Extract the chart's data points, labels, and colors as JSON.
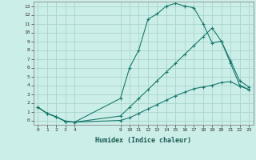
{
  "xlabel": "Humidex (Indice chaleur)",
  "bg_color": "#cceee8",
  "grid_color": "#aad4ce",
  "line_color": "#1a7a6e",
  "xlim": [
    -0.5,
    23.5
  ],
  "ylim": [
    -0.5,
    13.5
  ],
  "xticks": [
    0,
    1,
    2,
    3,
    4,
    9,
    10,
    11,
    12,
    13,
    14,
    15,
    16,
    17,
    18,
    19,
    20,
    21,
    22,
    23
  ],
  "yticks": [
    0,
    1,
    2,
    3,
    4,
    5,
    6,
    7,
    8,
    9,
    10,
    11,
    12,
    13
  ],
  "line1_x": [
    0,
    1,
    2,
    3,
    4,
    9,
    10,
    11,
    12,
    13,
    14,
    15,
    16,
    17,
    18,
    19,
    20,
    21,
    22,
    23
  ],
  "line1_y": [
    1.5,
    0.8,
    0.4,
    -0.1,
    -0.2,
    2.5,
    6.0,
    8.0,
    11.5,
    12.1,
    13.0,
    13.3,
    13.0,
    12.8,
    11.0,
    8.8,
    9.0,
    6.5,
    4.0,
    3.5
  ],
  "line2_x": [
    0,
    1,
    2,
    3,
    4,
    9,
    10,
    11,
    12,
    13,
    14,
    15,
    16,
    17,
    18,
    19,
    20,
    21,
    22,
    23
  ],
  "line2_y": [
    1.5,
    0.8,
    0.4,
    -0.1,
    -0.2,
    0.5,
    1.5,
    2.5,
    3.5,
    4.5,
    5.5,
    6.5,
    7.5,
    8.5,
    9.5,
    10.5,
    9.0,
    6.8,
    4.5,
    3.8
  ],
  "line3_x": [
    0,
    1,
    2,
    3,
    4,
    9,
    10,
    11,
    12,
    13,
    14,
    15,
    16,
    17,
    18,
    19,
    20,
    21,
    22,
    23
  ],
  "line3_y": [
    1.5,
    0.8,
    0.4,
    -0.1,
    -0.2,
    0.0,
    0.3,
    0.8,
    1.3,
    1.8,
    2.3,
    2.8,
    3.2,
    3.6,
    3.8,
    4.0,
    4.3,
    4.4,
    3.9,
    3.5
  ]
}
